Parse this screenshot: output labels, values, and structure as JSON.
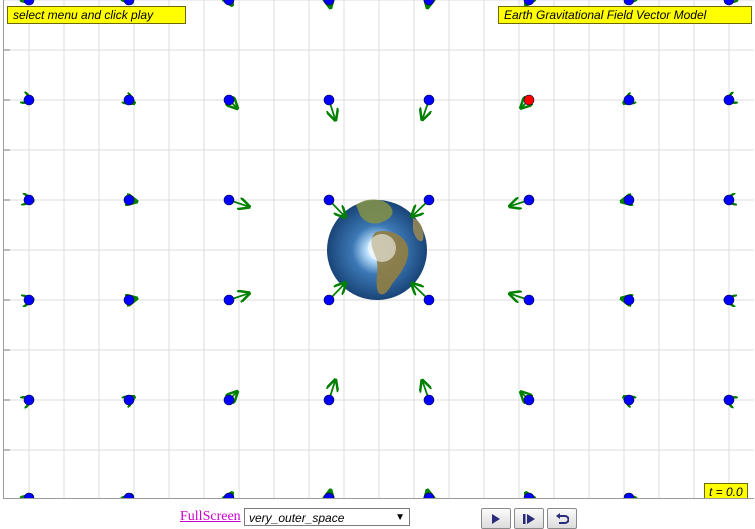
{
  "simulation": {
    "title": "Earth Gravitational Field Vector Model",
    "instructions": "select menu and click play",
    "time_readout": "t = 0.0"
  },
  "controls": {
    "fullscreen_label": "FullScreen",
    "preset_selected": "very_outer_space",
    "play_icon": "play-icon",
    "step_icon": "step-icon",
    "reset_icon": "reset-icon"
  },
  "colors": {
    "label_background": "#ffff00",
    "probe_color": "#0000ff",
    "test_mass_color": "#ff0000",
    "vector_color": "#008000",
    "grid_color": "#dcdcdc",
    "link_color": "#cc00cc"
  }
}
